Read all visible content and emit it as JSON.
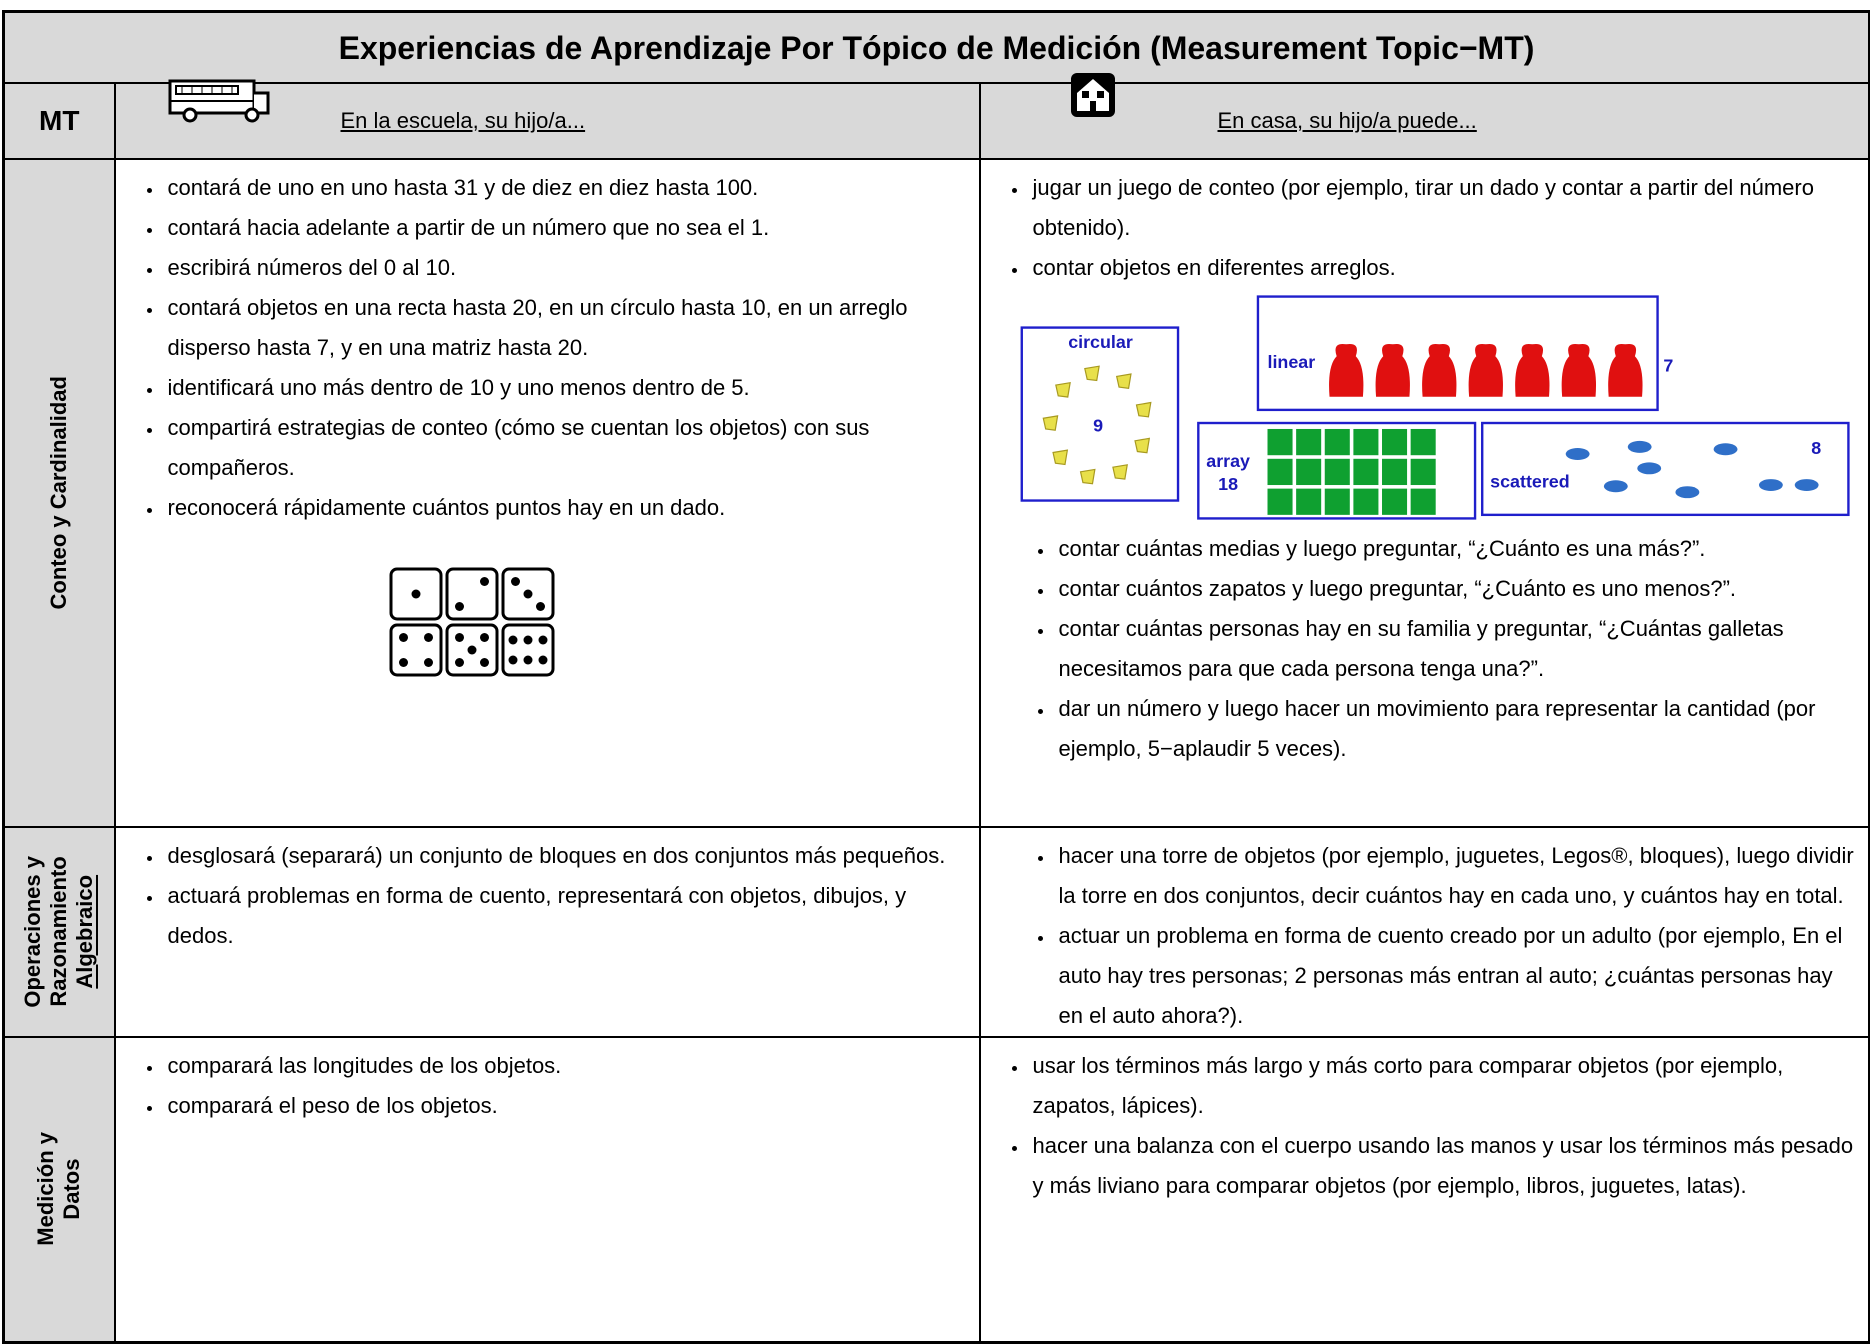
{
  "header": {
    "title": "Experiencias de Aprendizaje Por Tópico de Medición (Measurement Topic−MT)"
  },
  "columns": {
    "mt": "MT",
    "school": "En la escuela, su hijo/a...",
    "home": "En casa, su hijo/a puede..."
  },
  "rows": [
    {
      "label_lines": [
        "Conteo y Cardinalidad"
      ],
      "school": [
        "contará de uno en uno hasta 31 y de diez en diez hasta 100.",
        "contará hacia adelante a partir de un número que no sea el 1.",
        "escribirá números del 0 al 10.",
        "contará objetos en una recta hasta 20, en un círculo hasta 10, en un arreglo disperso hasta 7, y en una matriz hasta 20.",
        "identificará uno más dentro de 10 y uno menos dentro de 5.",
        "compartirá estrategias de conteo (cómo se cuentan los objetos) con sus compañeros.",
        "reconocerá rápidamente cuántos puntos hay en un dado."
      ],
      "home": [
        "jugar un juego de conteo (por ejemplo, tirar un dado y contar a partir del número obtenido).",
        "contar objetos en diferentes arreglos."
      ],
      "figure": {
        "circular": "circular",
        "circular_count": "9",
        "linear": "linear",
        "linear_count": "7",
        "array": "array",
        "array_count": "18",
        "scattered": "scattered",
        "scattered_count": "8"
      },
      "home_more": [
        "contar cuántas medias y luego preguntar, “¿Cuánto es una más?”.",
        "contar cuántos zapatos y luego preguntar, “¿Cuánto es uno menos?”.",
        "contar cuántas personas hay en su familia y preguntar, “¿Cuántas galletas necesitamos para que cada persona tenga una?”.",
        "dar un número y luego hacer un movimiento para representar la cantidad (por ejemplo, 5−aplaudir 5 veces)."
      ]
    },
    {
      "label_lines": [
        "Operaciones y",
        "Razonamiento",
        "Algebraico"
      ],
      "school": [
        "desglosará (separará) un conjunto de bloques en dos conjuntos más pequeños.",
        "actuará problemas en forma de cuento, representará con objetos, dibujos, y dedos."
      ],
      "home_more": [
        "hacer una torre de objetos (por ejemplo, juguetes, Legos®, bloques), luego dividir la torre en dos conjuntos, decir cuántos hay en cada uno, y cuántos hay en total.",
        "actuar un problema en forma de cuento creado por un adulto (por ejemplo, En el auto hay tres personas; 2 personas más entran al auto; ¿cuántas personas hay en el auto ahora?)."
      ]
    },
    {
      "label_lines": [
        "Medición y",
        "Datos"
      ],
      "school": [
        "comparará las longitudes de los objetos.",
        "comparará el peso de los objetos."
      ],
      "home": [
        "usar los términos más largo y más corto para comparar objetos (por ejemplo, zapatos, lápices).",
        "hacer una balanza con el cuerpo usando las manos y usar los términos más pesado y más liviano para comparar objetos (por ejemplo, libros, juguetes, latas)."
      ]
    }
  ]
}
